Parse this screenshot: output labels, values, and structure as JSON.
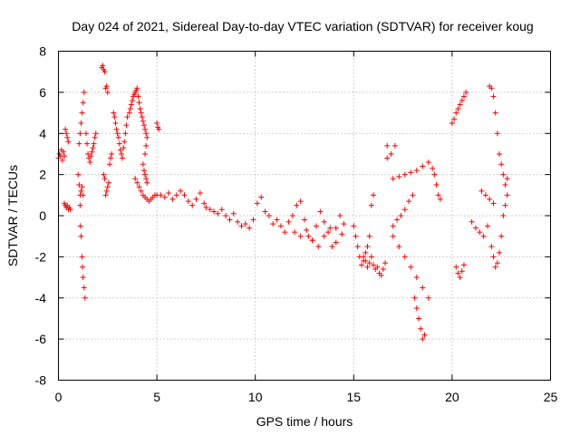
{
  "chart_data": {
    "type": "scatter",
    "title": "Day 024 of 2021, Sidereal Day-to-day VTEC variation (SDTVAR) for receiver koug",
    "xlabel": "GPS time / hours",
    "ylabel": "SDTVAR / TECUs",
    "xlim": [
      0,
      25
    ],
    "ylim": [
      -8,
      8
    ],
    "xticks": [
      0,
      5,
      10,
      15,
      20,
      25
    ],
    "yticks": [
      -8,
      -6,
      -4,
      -2,
      0,
      2,
      4,
      6,
      8
    ],
    "grid": true,
    "marker": "+",
    "marker_color": "#ff0000",
    "series": [
      {
        "name": "SDTVAR",
        "x": [
          0.0,
          0.05,
          0.1,
          0.15,
          0.2,
          0.25,
          0.3,
          0.35,
          0.4,
          0.45,
          0.5,
          0.3,
          0.35,
          0.4,
          0.45,
          0.5,
          0.55,
          0.6,
          1.0,
          1.05,
          1.1,
          1.12,
          1.15,
          1.2,
          1.22,
          1.25,
          1.3,
          1.35,
          1.1,
          1.15,
          1.2,
          1.25,
          1.05,
          1.1,
          1.15,
          1.2,
          1.25,
          1.3,
          1.4,
          1.45,
          1.5,
          1.55,
          1.6,
          1.65,
          1.7,
          1.75,
          1.8,
          1.85,
          1.9,
          2.2,
          2.25,
          2.3,
          2.35,
          2.4,
          2.45,
          2.5,
          2.4,
          2.45,
          2.5,
          2.55,
          2.3,
          2.35,
          2.6,
          2.65,
          2.7,
          2.8,
          2.85,
          2.9,
          2.95,
          3.0,
          3.05,
          3.1,
          3.15,
          3.2,
          3.25,
          3.3,
          3.35,
          3.4,
          3.45,
          3.5,
          3.6,
          3.65,
          3.7,
          3.75,
          3.8,
          3.85,
          3.9,
          3.95,
          4.0,
          4.05,
          4.1,
          4.15,
          4.2,
          4.25,
          4.3,
          4.35,
          4.4,
          4.45,
          4.5,
          3.9,
          4.0,
          4.1,
          4.2,
          4.3,
          4.4,
          4.5,
          4.6,
          4.7,
          4.8,
          4.9,
          5.0,
          4.3,
          4.35,
          4.4,
          4.45,
          4.5,
          4.4,
          4.45,
          5.0,
          5.05,
          5.1,
          5.2,
          5.4,
          5.6,
          5.8,
          6.0,
          6.2,
          6.4,
          6.6,
          6.8,
          7.0,
          7.2,
          7.4,
          7.5,
          7.7,
          7.9,
          8.1,
          8.3,
          8.5,
          8.7,
          8.9,
          9.1,
          9.3,
          9.5,
          9.7,
          9.9,
          10.1,
          10.3,
          10.5,
          10.7,
          10.9,
          11.1,
          11.3,
          11.5,
          11.7,
          11.9,
          12.1,
          12.3,
          12.5,
          12.7,
          12.9,
          13.1,
          13.3,
          13.5,
          13.7,
          13.9,
          14.1,
          14.3,
          14.5,
          12.0,
          12.3,
          12.6,
          12.9,
          13.2,
          13.5,
          13.8,
          14.1,
          14.4,
          15.0,
          15.1,
          15.2,
          15.3,
          15.4,
          15.5,
          15.6,
          15.7,
          15.8,
          15.9,
          16.0,
          15.5,
          15.6,
          15.7,
          15.8,
          15.9,
          16.0,
          16.1,
          16.2,
          16.3,
          16.4,
          16.5,
          16.6,
          16.7,
          17.0,
          17.2,
          17.4,
          17.6,
          17.8,
          18.0,
          18.1,
          18.2,
          18.3,
          18.4,
          18.5,
          18.6,
          17.0,
          17.3,
          17.6,
          17.9,
          18.2,
          18.5,
          18.8,
          17.0,
          17.3,
          17.6,
          17.9,
          18.2,
          18.5,
          18.8,
          16.7,
          16.9,
          17.1,
          19.0,
          19.1,
          19.2,
          19.3,
          19.4,
          20.0,
          20.1,
          20.2,
          20.3,
          20.4,
          20.5,
          20.6,
          20.7,
          20.2,
          20.3,
          20.4,
          20.5,
          20.6,
          21.0,
          21.2,
          21.4,
          21.6,
          21.8,
          21.9,
          22.0,
          22.1,
          22.2,
          22.3,
          22.4,
          22.5,
          22.6,
          22.7,
          22.8,
          22.0,
          22.1,
          22.2,
          22.3,
          22.4,
          22.5,
          22.6,
          22.7,
          22.8,
          21.5,
          21.7,
          21.9,
          22.1
        ],
        "y": [
          2.8,
          3.0,
          2.9,
          3.2,
          2.7,
          3.1,
          2.9,
          4.2,
          4.0,
          3.8,
          3.6,
          0.6,
          0.5,
          0.4,
          0.5,
          0.3,
          0.4,
          0.3,
          2.0,
          1.5,
          0.5,
          -0.5,
          -1.0,
          -2.0,
          -2.5,
          -3.0,
          -3.5,
          -4.0,
          1.0,
          1.2,
          1.4,
          1.0,
          3.5,
          4.0,
          4.5,
          5.0,
          5.5,
          6.0,
          4.0,
          3.5,
          3.0,
          2.8,
          2.6,
          2.9,
          3.1,
          3.3,
          3.5,
          3.8,
          4.0,
          7.2,
          7.3,
          7.1,
          7.0,
          6.2,
          6.3,
          6.0,
          1.0,
          1.2,
          1.4,
          1.6,
          2.0,
          1.8,
          2.5,
          2.8,
          3.0,
          5.0,
          4.8,
          4.5,
          4.2,
          4.0,
          3.8,
          3.5,
          3.2,
          3.0,
          2.8,
          3.3,
          3.6,
          4.0,
          4.4,
          4.8,
          5.0,
          5.2,
          5.4,
          5.6,
          5.8,
          5.9,
          6.0,
          6.1,
          6.2,
          5.8,
          5.5,
          5.2,
          5.0,
          4.8,
          4.6,
          4.4,
          4.2,
          4.0,
          3.8,
          1.8,
          1.6,
          1.4,
          1.2,
          1.0,
          0.9,
          0.8,
          0.7,
          0.8,
          0.9,
          1.0,
          1.0,
          2.5,
          2.2,
          2.0,
          1.8,
          1.6,
          3.0,
          3.4,
          4.5,
          4.3,
          4.2,
          1.0,
          0.9,
          1.1,
          0.8,
          1.0,
          1.2,
          1.0,
          0.7,
          0.5,
          0.8,
          1.1,
          0.6,
          0.4,
          0.3,
          0.2,
          0.1,
          0.3,
          0.0,
          -0.2,
          0.1,
          -0.3,
          -0.5,
          -0.4,
          -0.6,
          -0.2,
          0.6,
          0.9,
          0.2,
          0.0,
          -0.4,
          -0.2,
          -0.5,
          -0.8,
          -0.3,
          0.0,
          0.5,
          0.7,
          -0.2,
          -1.0,
          -1.2,
          -0.5,
          0.2,
          -0.3,
          -0.8,
          -1.5,
          -0.6,
          0.0,
          -0.4,
          -0.8,
          -1.0,
          -0.7,
          -1.2,
          -1.5,
          -1.0,
          -0.6,
          -1.3,
          -0.9,
          -0.5,
          -1.0,
          -1.5,
          -2.0,
          -2.4,
          -2.2,
          -1.8,
          -1.5,
          -1.0,
          0.5,
          1.0,
          -2.0,
          -2.2,
          -2.5,
          -2.3,
          -2.0,
          -2.4,
          -2.6,
          -2.5,
          -2.8,
          -2.9,
          -2.6,
          -2.3,
          3.4,
          -0.5,
          -0.2,
          0.0,
          0.3,
          0.7,
          1.0,
          -4.0,
          -4.5,
          -5.0,
          -5.5,
          -6.0,
          -5.8,
          1.8,
          1.9,
          2.0,
          2.1,
          2.2,
          2.4,
          2.6,
          -1.0,
          -1.5,
          -2.0,
          -2.5,
          -3.0,
          -3.5,
          -4.0,
          2.8,
          3.0,
          3.4,
          2.3,
          2.0,
          1.5,
          1.0,
          0.8,
          4.5,
          4.7,
          5.0,
          5.2,
          5.4,
          5.6,
          5.8,
          6.0,
          -2.5,
          -2.8,
          -3.0,
          -2.7,
          -2.4,
          -0.3,
          -0.6,
          -0.8,
          -1.0,
          -0.5,
          6.3,
          6.2,
          5.8,
          5.0,
          4.0,
          3.0,
          2.5,
          2.0,
          1.5,
          1.8,
          -1.5,
          -2.0,
          -2.5,
          -2.3,
          -1.8,
          -1.0,
          0.0,
          0.5,
          1.0,
          1.2,
          1.0,
          0.8,
          0.6
        ]
      }
    ]
  }
}
